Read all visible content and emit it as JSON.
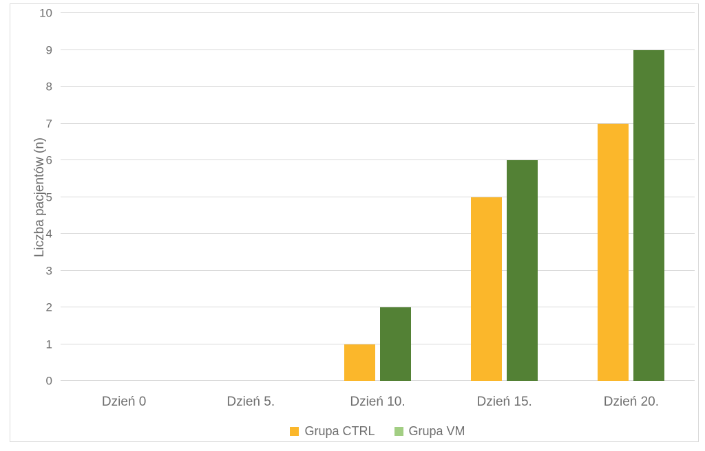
{
  "chart_data": {
    "type": "bar",
    "title": "",
    "categories": [
      "Dzień 0",
      "Dzień 5.",
      "Dzień 10.",
      "Dzień 15.",
      "Dzień 20."
    ],
    "series": [
      {
        "name": "Grupa CTRL",
        "color": "#FBB72B",
        "legend_color": "#FBB72B",
        "values": [
          0,
          0,
          1,
          5,
          7
        ]
      },
      {
        "name": "Grupa VM",
        "color": "#538135",
        "legend_color": "#A2CE83",
        "values": [
          0,
          0,
          2,
          6,
          9
        ]
      }
    ],
    "xlabel": "",
    "ylabel": "Liczba pacjentów (n)",
    "ylim": [
      0,
      10
    ],
    "yticks": [
      0,
      1,
      2,
      3,
      4,
      5,
      6,
      7,
      8,
      9,
      10
    ],
    "grid": "horizontal",
    "legend_position": "bottom"
  },
  "colors": {
    "background": "#FFFFFF",
    "frame_border": "#D9D9D9",
    "gridline": "#D9D9D9",
    "axis_text": "#6E6E6E"
  }
}
